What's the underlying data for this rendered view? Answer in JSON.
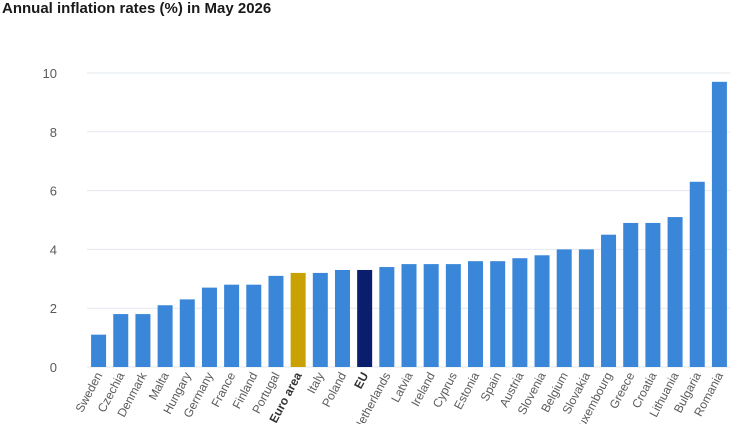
{
  "chart_data": {
    "type": "bar",
    "title": "Annual inflation rates (%) in May 2026",
    "xlabel": "",
    "ylabel": "",
    "ylim": [
      0,
      10
    ],
    "yticks": [
      "0",
      "2",
      "4",
      "6",
      "8",
      "10"
    ],
    "grid": true,
    "categories": [
      "Sweden",
      "Czechia",
      "Denmark",
      "Malta",
      "Hungary",
      "Germany",
      "France",
      "Finland",
      "Portugal",
      "Euro area",
      "Italy",
      "Poland",
      "EU",
      "Netherlands",
      "Latvia",
      "Ireland",
      "Cyprus",
      "Estonia",
      "Spain",
      "Austria",
      "Slovenia",
      "Belgium",
      "Slovakia",
      "Luxembourg",
      "Greece",
      "Croatia",
      "Lithuania",
      "Bulgaria",
      "Romania"
    ],
    "values": [
      1.1,
      1.8,
      1.8,
      2.1,
      2.3,
      2.7,
      2.8,
      2.8,
      3.1,
      3.2,
      3.2,
      3.3,
      3.3,
      3.4,
      3.5,
      3.5,
      3.5,
      3.6,
      3.6,
      3.7,
      3.8,
      4.0,
      4.0,
      4.5,
      4.9,
      4.9,
      5.1,
      6.3,
      9.7
    ],
    "highlight": {
      "Euro area": "#c9a100",
      "EU": "#0a1e6e"
    },
    "bold_labels": [
      "Euro area",
      "EU"
    ],
    "colors": {
      "bar": "#3a86d9",
      "grid": "#e3e8ef",
      "tick": "#5a5a5a"
    }
  }
}
